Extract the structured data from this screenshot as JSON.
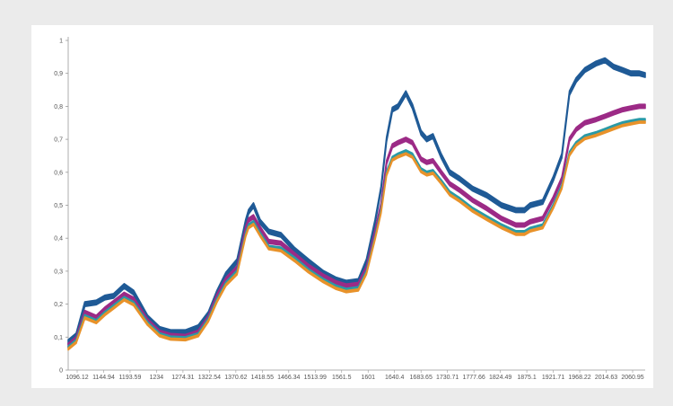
{
  "chart_data": {
    "type": "line",
    "title": "",
    "xlabel": "",
    "ylabel": "",
    "grid": false,
    "legend": "none",
    "ylim": [
      0,
      1
    ],
    "xlim": [
      1096.12,
      2100
    ],
    "y_ticks": [
      {
        "value": 0,
        "label": "0"
      },
      {
        "value": 0.1,
        "label": "0,1"
      },
      {
        "value": 0.2,
        "label": "0,2"
      },
      {
        "value": 0.3,
        "label": "0,3"
      },
      {
        "value": 0.4,
        "label": "0,4"
      },
      {
        "value": 0.5,
        "label": "0,5"
      },
      {
        "value": 0.6,
        "label": "0,6"
      },
      {
        "value": 0.7,
        "label": "0,7"
      },
      {
        "value": 0.8,
        "label": "0,8"
      },
      {
        "value": 0.9,
        "label": "0,9"
      },
      {
        "value": 1,
        "label": "1"
      }
    ],
    "x_ticks": [
      "1096.12",
      "1144.94",
      "1193.59",
      "1234",
      "1274.31",
      "1322.54",
      "1370.62",
      "1418.55",
      "1466.34",
      "1513.99",
      "1561.5",
      "1601",
      "1640.4",
      "1683.65",
      "1730.71",
      "1777.66",
      "1824.49",
      "1875.1",
      "1921.71",
      "1968.22",
      "2014.63",
      "2060.95"
    ],
    "series": [
      {
        "color": "#1f5a96",
        "band_width": 0.014,
        "x": [
          1096.12,
          1110,
          1125,
          1144.94,
          1160,
          1175,
          1193.59,
          1210,
          1234,
          1255,
          1274.31,
          1300,
          1322.54,
          1340,
          1355,
          1370.62,
          1390,
          1405,
          1410,
          1418.55,
          1430,
          1445,
          1466.34,
          1490,
          1513.99,
          1540,
          1561.5,
          1580,
          1601,
          1615,
          1630,
          1640.4,
          1650,
          1660,
          1670,
          1683.65,
          1695,
          1710,
          1720,
          1730.71,
          1745,
          1760,
          1777.66,
          1800,
          1824.49,
          1850,
          1875.1,
          1890,
          1900,
          1921.71,
          1940,
          1955,
          1968.22,
          1980,
          1995,
          2014.63,
          2030,
          2045,
          2060.95,
          2075,
          2090,
          2100
        ],
        "y": [
          0.085,
          0.105,
          0.2,
          0.205,
          0.22,
          0.225,
          0.255,
          0.235,
          0.16,
          0.125,
          0.115,
          0.115,
          0.13,
          0.17,
          0.235,
          0.29,
          0.33,
          0.45,
          0.48,
          0.5,
          0.45,
          0.42,
          0.41,
          0.365,
          0.33,
          0.295,
          0.275,
          0.265,
          0.27,
          0.33,
          0.45,
          0.55,
          0.7,
          0.79,
          0.8,
          0.84,
          0.8,
          0.72,
          0.7,
          0.71,
          0.65,
          0.6,
          0.58,
          0.55,
          0.53,
          0.5,
          0.485,
          0.485,
          0.5,
          0.51,
          0.58,
          0.65,
          0.84,
          0.88,
          0.91,
          0.93,
          0.94,
          0.92,
          0.91,
          0.9,
          0.9,
          0.895
        ]
      },
      {
        "color": "#9c2a86",
        "band_width": 0.012,
        "x": [
          1096.12,
          1110,
          1125,
          1144.94,
          1160,
          1175,
          1193.59,
          1210,
          1234,
          1255,
          1274.31,
          1300,
          1322.54,
          1340,
          1355,
          1370.62,
          1390,
          1405,
          1410,
          1418.55,
          1430,
          1445,
          1466.34,
          1490,
          1513.99,
          1540,
          1561.5,
          1580,
          1601,
          1615,
          1630,
          1640.4,
          1650,
          1660,
          1670,
          1683.65,
          1695,
          1710,
          1720,
          1730.71,
          1745,
          1760,
          1777.66,
          1800,
          1824.49,
          1850,
          1875.1,
          1890,
          1900,
          1921.71,
          1940,
          1955,
          1968.22,
          1980,
          1995,
          2014.63,
          2030,
          2045,
          2060.95,
          2075,
          2090,
          2100
        ],
        "y": [
          0.075,
          0.095,
          0.175,
          0.16,
          0.185,
          0.205,
          0.23,
          0.215,
          0.15,
          0.115,
          0.105,
          0.102,
          0.115,
          0.16,
          0.225,
          0.275,
          0.31,
          0.43,
          0.455,
          0.465,
          0.43,
          0.39,
          0.385,
          0.35,
          0.315,
          0.285,
          0.265,
          0.255,
          0.26,
          0.31,
          0.42,
          0.5,
          0.63,
          0.68,
          0.69,
          0.7,
          0.69,
          0.64,
          0.63,
          0.635,
          0.6,
          0.565,
          0.545,
          0.515,
          0.49,
          0.46,
          0.44,
          0.44,
          0.45,
          0.46,
          0.52,
          0.58,
          0.7,
          0.73,
          0.75,
          0.76,
          0.77,
          0.78,
          0.79,
          0.795,
          0.8,
          0.8
        ]
      },
      {
        "color": "#2a9aa6",
        "band_width": 0.006,
        "x": [
          1096.12,
          1110,
          1125,
          1144.94,
          1160,
          1175,
          1193.59,
          1210,
          1234,
          1255,
          1274.31,
          1300,
          1322.54,
          1340,
          1355,
          1370.62,
          1390,
          1405,
          1410,
          1418.55,
          1430,
          1445,
          1466.34,
          1490,
          1513.99,
          1540,
          1561.5,
          1580,
          1601,
          1615,
          1630,
          1640.4,
          1650,
          1660,
          1670,
          1683.65,
          1695,
          1710,
          1720,
          1730.71,
          1745,
          1760,
          1777.66,
          1800,
          1824.49,
          1850,
          1875.1,
          1890,
          1900,
          1921.71,
          1940,
          1955,
          1968.22,
          1980,
          1995,
          2014.63,
          2030,
          2045,
          2060.95,
          2075,
          2090,
          2100
        ],
        "y": [
          0.07,
          0.09,
          0.165,
          0.15,
          0.175,
          0.195,
          0.22,
          0.205,
          0.145,
          0.11,
          0.1,
          0.098,
          0.11,
          0.155,
          0.215,
          0.265,
          0.3,
          0.415,
          0.44,
          0.45,
          0.415,
          0.375,
          0.37,
          0.34,
          0.305,
          0.275,
          0.255,
          0.245,
          0.25,
          0.3,
          0.405,
          0.485,
          0.6,
          0.645,
          0.655,
          0.665,
          0.655,
          0.61,
          0.6,
          0.605,
          0.575,
          0.54,
          0.52,
          0.49,
          0.465,
          0.44,
          0.42,
          0.42,
          0.43,
          0.44,
          0.5,
          0.56,
          0.66,
          0.69,
          0.71,
          0.72,
          0.73,
          0.74,
          0.75,
          0.755,
          0.76,
          0.76
        ]
      },
      {
        "color": "#e8922a",
        "band_width": 0.006,
        "x": [
          1096.12,
          1110,
          1125,
          1144.94,
          1160,
          1175,
          1193.59,
          1210,
          1234,
          1255,
          1274.31,
          1300,
          1322.54,
          1340,
          1355,
          1370.62,
          1390,
          1405,
          1410,
          1418.55,
          1430,
          1445,
          1466.34,
          1490,
          1513.99,
          1540,
          1561.5,
          1580,
          1601,
          1615,
          1630,
          1640.4,
          1650,
          1660,
          1670,
          1683.65,
          1695,
          1710,
          1720,
          1730.71,
          1745,
          1760,
          1777.66,
          1800,
          1824.49,
          1850,
          1875.1,
          1890,
          1900,
          1921.71,
          1940,
          1955,
          1968.22,
          1980,
          1995,
          2014.63,
          2030,
          2045,
          2060.95,
          2075,
          2090,
          2100
        ],
        "y": [
          0.064,
          0.084,
          0.158,
          0.144,
          0.168,
          0.188,
          0.213,
          0.198,
          0.139,
          0.104,
          0.094,
          0.092,
          0.104,
          0.149,
          0.208,
          0.258,
          0.292,
          0.407,
          0.432,
          0.442,
          0.408,
          0.368,
          0.362,
          0.332,
          0.298,
          0.268,
          0.248,
          0.238,
          0.243,
          0.293,
          0.398,
          0.477,
          0.592,
          0.637,
          0.647,
          0.656,
          0.646,
          0.602,
          0.592,
          0.597,
          0.567,
          0.532,
          0.512,
          0.482,
          0.457,
          0.432,
          0.412,
          0.412,
          0.422,
          0.432,
          0.492,
          0.552,
          0.652,
          0.682,
          0.702,
          0.712,
          0.722,
          0.732,
          0.742,
          0.747,
          0.752,
          0.752
        ]
      }
    ]
  }
}
